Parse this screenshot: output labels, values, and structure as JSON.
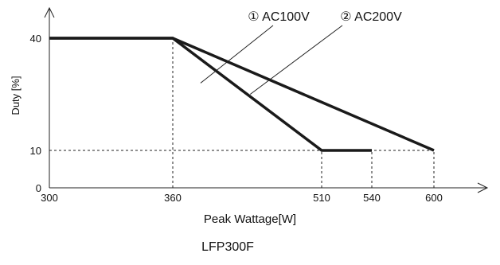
{
  "chart_data": {
    "type": "line",
    "title": "",
    "caption": "LFP300F",
    "xlabel": "Peak Wattage[W]",
    "ylabel": "Duty [%]",
    "xlim": [
      300,
      620
    ],
    "ylim": [
      0,
      50
    ],
    "x_ticks": [
      "300",
      "360",
      "510",
      "540",
      "600"
    ],
    "y_ticks": [
      "0",
      "10",
      "40"
    ],
    "grid": false,
    "reference_lines": [
      {
        "axis": "x",
        "value": 360,
        "to_y": 40
      },
      {
        "axis": "x",
        "value": 510,
        "to_y": 10
      },
      {
        "axis": "x",
        "value": 540,
        "to_y": 10
      },
      {
        "axis": "x",
        "value": 600,
        "to_y": 10
      },
      {
        "axis": "y",
        "value": 10,
        "to_x": 600
      }
    ],
    "series": [
      {
        "name": "① AC100V",
        "label_point": {
          "x": 388,
          "y": 28
        },
        "points": [
          {
            "x": 300,
            "y": 40
          },
          {
            "x": 360,
            "y": 40
          },
          {
            "x": 510,
            "y": 10
          },
          {
            "x": 540,
            "y": 10
          }
        ]
      },
      {
        "name": "② AC200V",
        "label_point": {
          "x": 438,
          "y": 25
        },
        "points": [
          {
            "x": 300,
            "y": 40
          },
          {
            "x": 360,
            "y": 40
          },
          {
            "x": 600,
            "y": 10
          }
        ]
      }
    ]
  }
}
